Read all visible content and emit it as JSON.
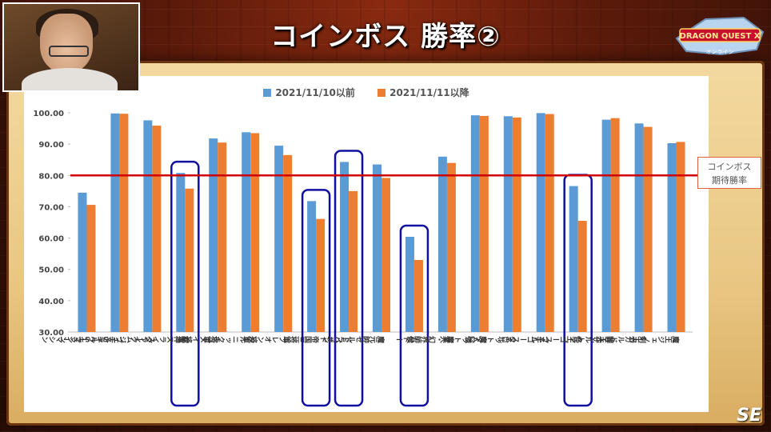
{
  "header": {
    "title": "コインボス 勝率②",
    "logo_text": "DRAGON QUEST X",
    "logo_sub": "オンライン",
    "watermark": "SE"
  },
  "callout": {
    "line1": "コインボス",
    "line2": "期待勝率"
  },
  "colors": {
    "series1": "#5b9bd5",
    "series2": "#ed7d31",
    "threshold": "#d00000",
    "highlight_box": "#1010a0"
  },
  "chart_data": {
    "type": "bar",
    "title": "",
    "xlabel": "",
    "ylabel": "",
    "ylim": [
      30,
      100
    ],
    "yticks": [
      "30.00",
      "40.00",
      "50.00",
      "60.00",
      "70.00",
      "80.00",
      "90.00",
      "100.00"
    ],
    "grid": false,
    "legend_position": "top",
    "threshold": 80,
    "categories": [
      "Sキラーマシン",
      "ブチSキラーマシン",
      "スライムジェネラル",
      "邪神スライダーク",
      "キュメイ将軍",
      "ゲルニック将軍",
      "ブレオン将軍",
      "帝国三将軍",
      "ドラゴン",
      "魔元帥ゼルドバルド",
      "ムドー",
      "真・幻界師候",
      "タロット魔人",
      "タロット魔人強",
      "ブチゴースネル",
      "怪王ゴースネル",
      "闇王ザルトラ",
      "剣王ガルドリオン",
      "魔王ジェノーガ"
    ],
    "highlighted": [
      3,
      7,
      8,
      10,
      15
    ],
    "series": [
      {
        "name": "2021/11/10以前",
        "values": [
          74.5,
          99.8,
          97.6,
          80.8,
          91.8,
          93.8,
          89.5,
          71.8,
          84.3,
          83.5,
          60.4,
          86.0,
          99.2,
          98.9,
          99.9,
          76.6,
          97.8,
          96.6,
          90.3
        ]
      },
      {
        "name": "2021/11/11以降",
        "values": [
          70.6,
          99.7,
          95.9,
          75.8,
          90.5,
          93.5,
          86.5,
          66.1,
          75.0,
          79.2,
          53.0,
          84.0,
          99.0,
          98.5,
          99.6,
          65.5,
          98.3,
          95.5,
          90.7
        ]
      }
    ]
  }
}
